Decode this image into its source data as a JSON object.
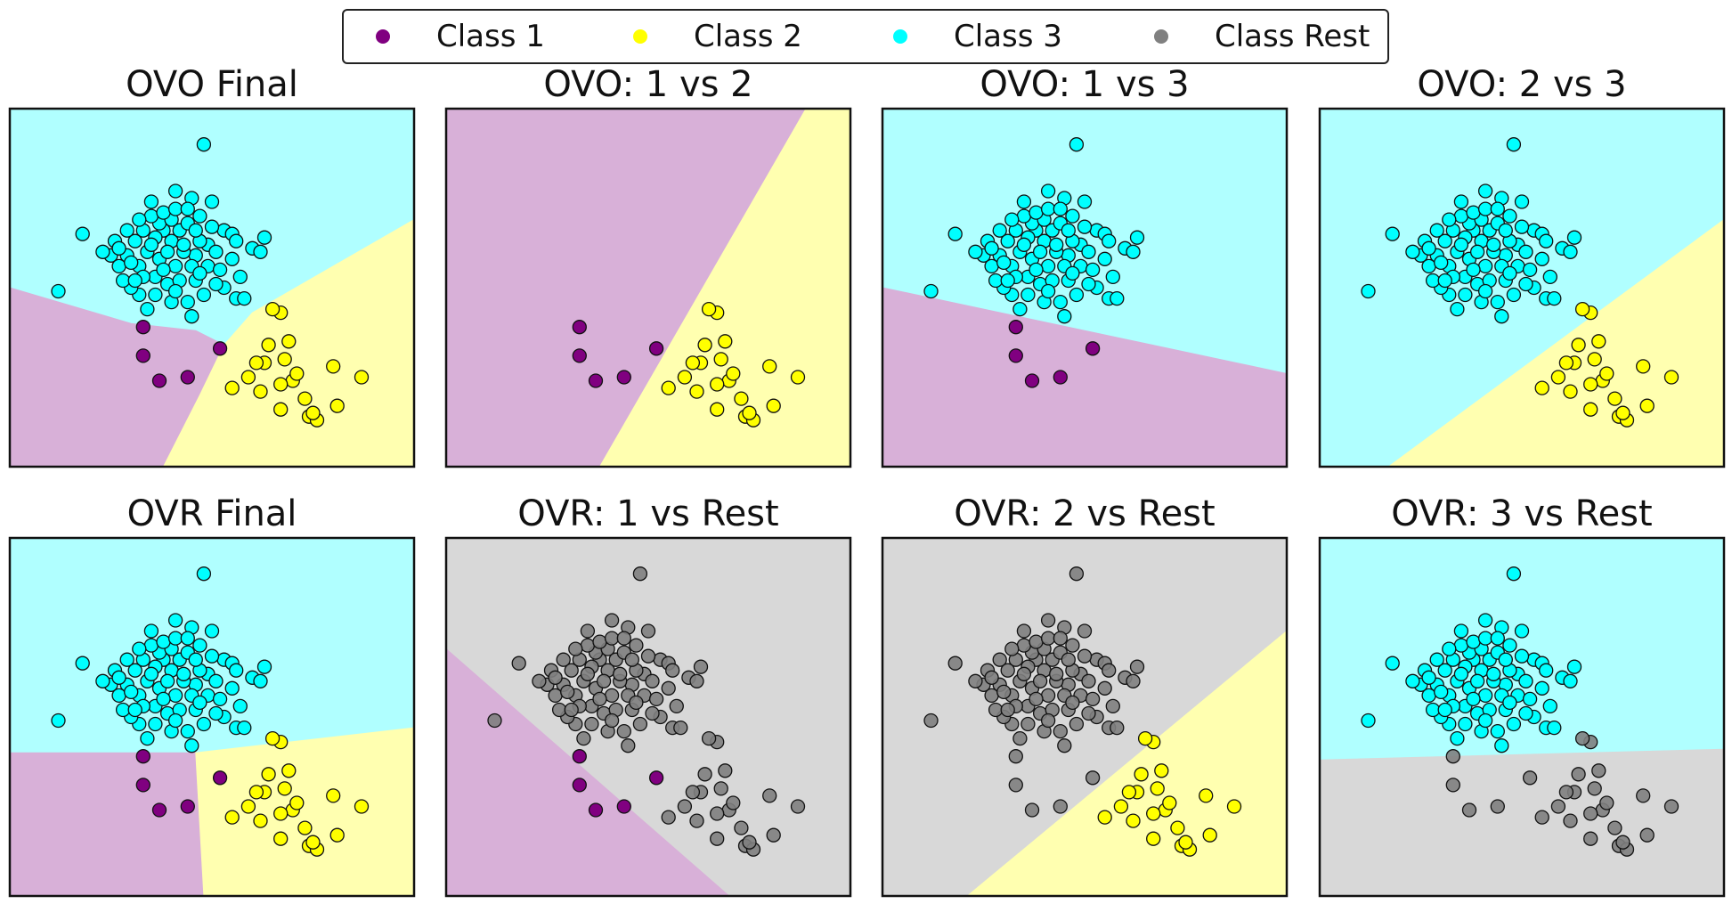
{
  "legend": {
    "items": [
      {
        "label": "Class 1",
        "color": "#800080"
      },
      {
        "label": "Class 2",
        "color": "#ffff00"
      },
      {
        "label": "Class 3",
        "color": "#00ffff"
      },
      {
        "label": "Class Rest",
        "color": "#808080"
      }
    ]
  },
  "colors": {
    "class1_region": "#d8b0d8",
    "class2_region": "#ffffb0",
    "class3_region": "#b0ffff",
    "rest_region": "#d8d8d8"
  },
  "chart_data": [
    {
      "type": "scatter",
      "title": "OVO Final",
      "mode": "ovo_final"
    },
    {
      "type": "scatter",
      "title": "OVO: 1 vs 2",
      "mode": "ovo_12"
    },
    {
      "type": "scatter",
      "title": "OVO: 1 vs 3",
      "mode": "ovo_13"
    },
    {
      "type": "scatter",
      "title": "OVO: 2 vs 3",
      "mode": "ovo_23"
    },
    {
      "type": "scatter",
      "title": "OVR Final",
      "mode": "ovr_final"
    },
    {
      "type": "scatter",
      "title": "OVR: 1 vs Rest",
      "mode": "ovr_1"
    },
    {
      "type": "scatter",
      "title": "OVR: 2 vs Rest",
      "mode": "ovr_2"
    },
    {
      "type": "scatter",
      "title": "OVR: 3 vs Rest",
      "mode": "ovr_3"
    }
  ],
  "points": {
    "class1": [
      [
        0.33,
        0.39
      ],
      [
        0.33,
        0.31
      ],
      [
        0.44,
        0.25
      ],
      [
        0.52,
        0.33
      ],
      [
        0.37,
        0.24
      ]
    ],
    "class2": [
      [
        0.67,
        0.43
      ],
      [
        0.69,
        0.35
      ],
      [
        0.63,
        0.29
      ],
      [
        0.61,
        0.29
      ],
      [
        0.59,
        0.25
      ],
      [
        0.62,
        0.21
      ],
      [
        0.55,
        0.22
      ],
      [
        0.7,
        0.24
      ],
      [
        0.67,
        0.23
      ],
      [
        0.73,
        0.19
      ],
      [
        0.74,
        0.14
      ],
      [
        0.76,
        0.13
      ],
      [
        0.75,
        0.15
      ],
      [
        0.81,
        0.17
      ],
      [
        0.87,
        0.25
      ],
      [
        0.8,
        0.28
      ],
      [
        0.68,
        0.3
      ],
      [
        0.64,
        0.34
      ],
      [
        0.71,
        0.26
      ],
      [
        0.67,
        0.16
      ],
      [
        0.65,
        0.44
      ]
    ],
    "class3": [
      [
        0.48,
        0.9
      ],
      [
        0.41,
        0.77
      ],
      [
        0.45,
        0.75
      ],
      [
        0.47,
        0.7
      ],
      [
        0.5,
        0.74
      ],
      [
        0.53,
        0.66
      ],
      [
        0.55,
        0.65
      ],
      [
        0.49,
        0.62
      ],
      [
        0.46,
        0.59
      ],
      [
        0.43,
        0.6
      ],
      [
        0.4,
        0.63
      ],
      [
        0.38,
        0.66
      ],
      [
        0.36,
        0.64
      ],
      [
        0.34,
        0.6
      ],
      [
        0.33,
        0.66
      ],
      [
        0.31,
        0.63
      ],
      [
        0.29,
        0.59
      ],
      [
        0.27,
        0.56
      ],
      [
        0.25,
        0.59
      ],
      [
        0.23,
        0.6
      ],
      [
        0.26,
        0.63
      ],
      [
        0.32,
        0.56
      ],
      [
        0.36,
        0.53
      ],
      [
        0.39,
        0.51
      ],
      [
        0.42,
        0.52
      ],
      [
        0.46,
        0.52
      ],
      [
        0.49,
        0.56
      ],
      [
        0.52,
        0.55
      ],
      [
        0.55,
        0.58
      ],
      [
        0.57,
        0.53
      ],
      [
        0.6,
        0.61
      ],
      [
        0.63,
        0.64
      ],
      [
        0.62,
        0.6
      ],
      [
        0.53,
        0.5
      ],
      [
        0.56,
        0.47
      ],
      [
        0.58,
        0.47
      ],
      [
        0.48,
        0.48
      ],
      [
        0.44,
        0.46
      ],
      [
        0.4,
        0.46
      ],
      [
        0.36,
        0.48
      ],
      [
        0.32,
        0.48
      ],
      [
        0.3,
        0.5
      ],
      [
        0.28,
        0.52
      ],
      [
        0.35,
        0.62
      ],
      [
        0.37,
        0.58
      ],
      [
        0.41,
        0.56
      ],
      [
        0.43,
        0.62
      ],
      [
        0.45,
        0.56
      ],
      [
        0.39,
        0.6
      ],
      [
        0.42,
        0.66
      ],
      [
        0.47,
        0.63
      ],
      [
        0.51,
        0.6
      ],
      [
        0.44,
        0.68
      ],
      [
        0.37,
        0.68
      ],
      [
        0.35,
        0.7
      ],
      [
        0.4,
        0.69
      ],
      [
        0.38,
        0.55
      ],
      [
        0.33,
        0.53
      ],
      [
        0.5,
        0.67
      ],
      [
        0.31,
        0.52
      ],
      [
        0.18,
        0.65
      ],
      [
        0.12,
        0.49
      ],
      [
        0.45,
        0.42
      ],
      [
        0.34,
        0.44
      ],
      [
        0.56,
        0.63
      ],
      [
        0.51,
        0.51
      ],
      [
        0.27,
        0.61
      ],
      [
        0.29,
        0.66
      ],
      [
        0.46,
        0.66
      ],
      [
        0.38,
        0.71
      ],
      [
        0.41,
        0.72
      ],
      [
        0.44,
        0.72
      ],
      [
        0.35,
        0.74
      ],
      [
        0.32,
        0.69
      ],
      [
        0.47,
        0.54
      ],
      [
        0.41,
        0.49
      ],
      [
        0.3,
        0.57
      ]
    ]
  }
}
